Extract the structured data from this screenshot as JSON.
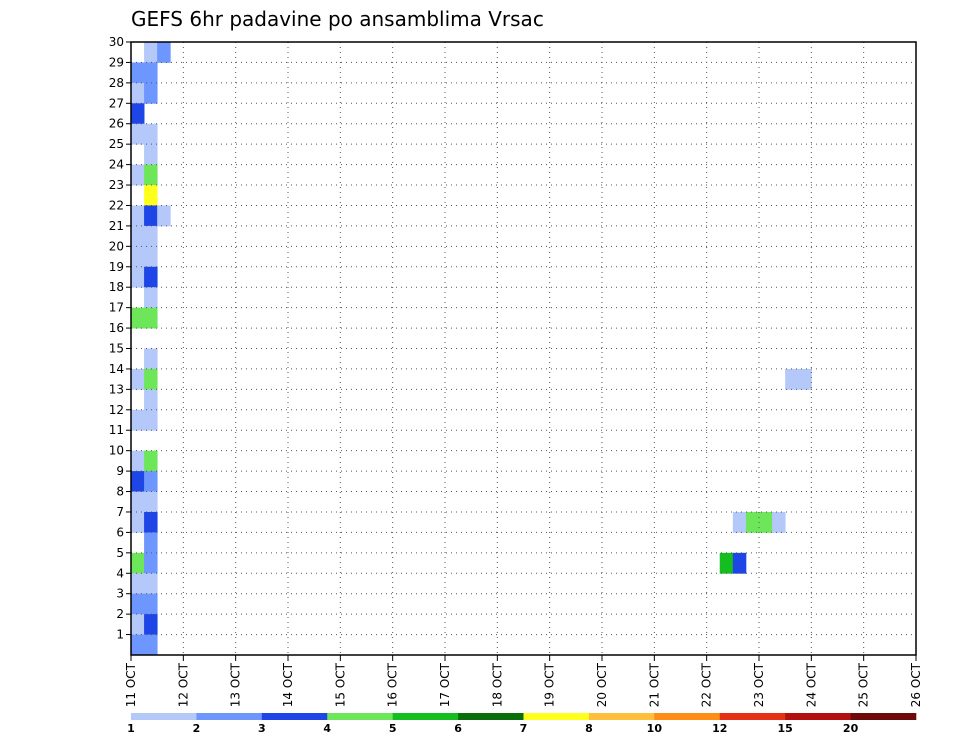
{
  "chart_data": {
    "type": "heatmap",
    "title": "GEFS 6hr padavine po ansamblima Vrsac",
    "xlabel": "",
    "ylabel": "",
    "x_tick_labels": [
      "11 OCT",
      "12 OCT",
      "13 OCT",
      "14 OCT",
      "15 OCT",
      "16 OCT",
      "17 OCT",
      "18 OCT",
      "19 OCT",
      "20 OCT",
      "21 OCT",
      "22 OCT",
      "23 OCT",
      "24 OCT",
      "25 OCT",
      "26 OCT"
    ],
    "y_tick_labels": [
      "1",
      "2",
      "3",
      "4",
      "5",
      "6",
      "7",
      "8",
      "9",
      "10",
      "11",
      "12",
      "13",
      "14",
      "15",
      "16",
      "17",
      "18",
      "19",
      "20",
      "21",
      "22",
      "23",
      "24",
      "25",
      "26",
      "27",
      "28",
      "29",
      "30"
    ],
    "x_range_days": [
      0,
      15
    ],
    "y_range": [
      0,
      30
    ],
    "grid": "dotted",
    "colorbar": {
      "labels": [
        "1",
        "2",
        "3",
        "4",
        "5",
        "6",
        "7",
        "8",
        "10",
        "12",
        "15",
        "20"
      ],
      "colors": [
        "#b4c8fa",
        "#6e96ff",
        "#1e46e6",
        "#6ee65a",
        "#14be1e",
        "#0a6e0a",
        "#ffff1e",
        "#ffbe3c",
        "#ff8c14",
        "#e63214",
        "#b40f0f",
        "#6e0a0a"
      ]
    },
    "series": [
      {
        "member": 30,
        "steps": [
          [
            1,
            "#b4c8fa"
          ],
          [
            2,
            "#6e96ff"
          ],
          [
            86,
            "#b4c8fa"
          ],
          [
            87,
            "#6e96ff"
          ],
          [
            88,
            "#6e96ff"
          ],
          [
            89,
            "#b4c8fa"
          ],
          [
            90,
            "#b4c8fa"
          ],
          [
            103,
            "#14be1e"
          ]
        ]
      },
      {
        "member": 29,
        "steps": [
          [
            0,
            "#6e96ff"
          ],
          [
            1,
            "#6e96ff"
          ]
        ]
      },
      {
        "member": 28,
        "steps": [
          [
            0,
            "#b4c8fa"
          ],
          [
            1,
            "#6e96ff"
          ]
        ]
      },
      {
        "member": 27,
        "steps": [
          [
            0,
            "#1e46e6"
          ],
          [
            118,
            "#b4c8fa"
          ]
        ]
      },
      {
        "member": 26,
        "steps": [
          [
            0,
            "#b4c8fa"
          ],
          [
            1,
            "#b4c8fa"
          ]
        ]
      },
      {
        "member": 25,
        "steps": [
          [
            1,
            "#b4c8fa"
          ]
        ]
      },
      {
        "member": 24,
        "steps": [
          [
            0,
            "#b4c8fa"
          ],
          [
            1,
            "#6ee65a"
          ],
          [
            93,
            "#b4c8fa"
          ]
        ]
      },
      {
        "member": 23,
        "steps": [
          [
            1,
            "#ffff1e"
          ]
        ]
      },
      {
        "member": 22,
        "steps": [
          [
            0,
            "#b4c8fa"
          ],
          [
            1,
            "#1e46e6"
          ],
          [
            2,
            "#b4c8fa"
          ]
        ]
      },
      {
        "member": 21,
        "steps": [
          [
            0,
            "#b4c8fa"
          ],
          [
            1,
            "#b4c8fa"
          ],
          [
            110,
            "#6e96ff"
          ]
        ]
      },
      {
        "member": 20,
        "steps": [
          [
            0,
            "#b4c8fa"
          ],
          [
            1,
            "#b4c8fa"
          ]
        ]
      },
      {
        "member": 19,
        "steps": [
          [
            0,
            "#b4c8fa"
          ],
          [
            1,
            "#1e46e6"
          ]
        ]
      },
      {
        "member": 18,
        "steps": [
          [
            1,
            "#b4c8fa"
          ],
          [
            66,
            "#6e96ff"
          ],
          [
            78,
            "#b4c8fa"
          ],
          [
            79,
            "#b4c8fa"
          ],
          [
            80,
            "#b4c8fa"
          ],
          [
            81,
            "#1e46e6"
          ],
          [
            82,
            "#14be1e"
          ],
          [
            83,
            "#b4c8fa"
          ]
        ]
      },
      {
        "member": 17,
        "steps": [
          [
            0,
            "#6ee65a"
          ],
          [
            1,
            "#6ee65a"
          ],
          [
            103,
            "#1e46e6"
          ],
          [
            104,
            "#6e96ff"
          ],
          [
            116,
            "#b4c8fa"
          ],
          [
            117,
            "#6ee65a"
          ],
          [
            118,
            "#0a6e0a"
          ]
        ]
      },
      {
        "member": 16,
        "steps": [
          [
            88,
            "#1e46e6"
          ],
          [
            89,
            "#ff8c14"
          ],
          [
            90,
            "#6e96ff"
          ]
        ]
      },
      {
        "member": 15,
        "steps": [
          [
            1,
            "#b4c8fa"
          ]
        ]
      },
      {
        "member": 14,
        "steps": [
          [
            0,
            "#b4c8fa"
          ],
          [
            1,
            "#6ee65a"
          ],
          [
            50,
            "#b4c8fa"
          ],
          [
            51,
            "#b4c8fa"
          ]
        ]
      },
      {
        "member": 13,
        "steps": [
          [
            1,
            "#b4c8fa"
          ]
        ]
      },
      {
        "member": 12,
        "steps": [
          [
            0,
            "#b4c8fa"
          ],
          [
            1,
            "#b4c8fa"
          ]
        ]
      },
      {
        "member": 10,
        "steps": [
          [
            0,
            "#b4c8fa"
          ],
          [
            1,
            "#6ee65a"
          ]
        ]
      },
      {
        "member": 9,
        "steps": [
          [
            0,
            "#1e46e6"
          ],
          [
            1,
            "#6e96ff"
          ]
        ]
      },
      {
        "member": 8,
        "steps": [
          [
            0,
            "#b4c8fa"
          ],
          [
            1,
            "#b4c8fa"
          ]
        ]
      },
      {
        "member": 7,
        "steps": [
          [
            0,
            "#b4c8fa"
          ],
          [
            1,
            "#1e46e6"
          ],
          [
            46,
            "#b4c8fa"
          ],
          [
            47,
            "#6ee65a"
          ],
          [
            48,
            "#6ee65a"
          ],
          [
            49,
            "#b4c8fa"
          ]
        ]
      },
      {
        "member": 6,
        "steps": [
          [
            1,
            "#6e96ff"
          ]
        ]
      },
      {
        "member": 5,
        "steps": [
          [
            0,
            "#6ee65a"
          ],
          [
            1,
            "#6e96ff"
          ],
          [
            45,
            "#14be1e"
          ],
          [
            46,
            "#1e46e6"
          ],
          [
            81,
            "#1e46e6"
          ],
          [
            82,
            "#1e46e6"
          ],
          [
            83,
            "#6e96ff"
          ]
        ]
      },
      {
        "member": 4,
        "steps": [
          [
            0,
            "#b4c8fa"
          ],
          [
            1,
            "#b4c8fa"
          ]
        ]
      },
      {
        "member": 3,
        "steps": [
          [
            0,
            "#6e96ff"
          ],
          [
            1,
            "#6e96ff"
          ],
          [
            71,
            "#ff8c14"
          ],
          [
            72,
            "#6e96ff"
          ]
        ]
      },
      {
        "member": 2,
        "steps": [
          [
            0,
            "#b4c8fa"
          ],
          [
            1,
            "#1e46e6"
          ]
        ]
      },
      {
        "member": 1,
        "steps": [
          [
            0,
            "#6e96ff"
          ],
          [
            1,
            "#6e96ff"
          ],
          [
            108,
            "#b4c8fa"
          ]
        ]
      }
    ]
  }
}
